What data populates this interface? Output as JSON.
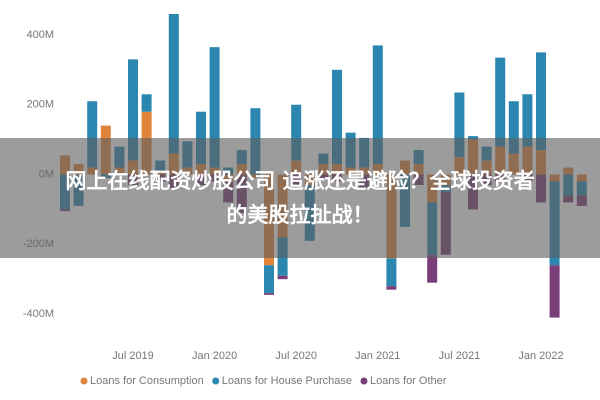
{
  "chart_data": {
    "type": "stacked_bar",
    "x": [
      "2019-02",
      "2019-03",
      "2019-04",
      "2019-05",
      "2019-06",
      "2019-07",
      "2019-08",
      "2019-09",
      "2019-10",
      "2019-11",
      "2019-12",
      "2020-01",
      "2020-02",
      "2020-03",
      "2020-04",
      "2020-05",
      "2020-06",
      "2020-07",
      "2020-08",
      "2020-09",
      "2020-10",
      "2020-11",
      "2020-12",
      "2021-01",
      "2021-02",
      "2021-03",
      "2021-04",
      "2021-05",
      "2021-06",
      "2021-07",
      "2021-08",
      "2021-09",
      "2021-10",
      "2021-11",
      "2021-12",
      "2022-01",
      "2022-02",
      "2022-03",
      "2022-04"
    ],
    "xticks": [
      {
        "value": "2019-07",
        "label": "Jul 2019"
      },
      {
        "value": "2020-01",
        "label": "Jan 2020"
      },
      {
        "value": "2020-07",
        "label": "Jul 2020"
      },
      {
        "value": "2021-01",
        "label": "Jan 2021"
      },
      {
        "value": "2021-07",
        "label": "Jul 2021"
      },
      {
        "value": "2022-01",
        "label": "Jan 2022"
      }
    ],
    "series": [
      {
        "name": "Loans for Consumption",
        "color": "#e0843c",
        "values": [
          55,
          30,
          20,
          140,
          20,
          40,
          180,
          10,
          60,
          20,
          30,
          20,
          -20,
          30,
          -10,
          -260,
          -180,
          40,
          -30,
          30,
          30,
          20,
          20,
          30,
          -240,
          40,
          30,
          -80,
          -30,
          50,
          100,
          40,
          80,
          60,
          80,
          70,
          -20,
          20,
          -20
        ]
      },
      {
        "name": "Loans for House Purchase",
        "color": "#2b87b0",
        "values": [
          -100,
          -90,
          190,
          -10,
          60,
          290,
          50,
          30,
          400,
          75,
          150,
          345,
          20,
          40,
          190,
          -80,
          -110,
          160,
          -160,
          30,
          270,
          100,
          85,
          340,
          -80,
          -150,
          40,
          -150,
          -20,
          185,
          10,
          40,
          255,
          150,
          150,
          280,
          -240,
          -60,
          -40
        ]
      },
      {
        "name": "Loans for Other",
        "color": "#7a3e78",
        "values": [
          -5,
          0,
          0,
          0,
          0,
          -30,
          0,
          -20,
          -40,
          0,
          -30,
          -20,
          -60,
          -110,
          0,
          -5,
          -10,
          -30,
          0,
          -10,
          -20,
          0,
          -40,
          0,
          -10,
          0,
          -30,
          -80,
          -180,
          0,
          -100,
          -30,
          -20,
          0,
          -20,
          -80,
          -150,
          -20,
          -30
        ]
      }
    ],
    "ylim": [
      -480,
      460
    ],
    "yticks": [
      {
        "value": -400,
        "label": "-400M"
      },
      {
        "value": -200,
        "label": "-200M"
      },
      {
        "value": 0,
        "label": "0M"
      },
      {
        "value": 200,
        "label": "200M"
      },
      {
        "value": 400,
        "label": "400M"
      }
    ],
    "grid": false
  },
  "banner": {
    "lines": [
      "网上在线配资炒股公司 追涨还是避险？全球投资者",
      "的美股拉扯战！"
    ]
  }
}
